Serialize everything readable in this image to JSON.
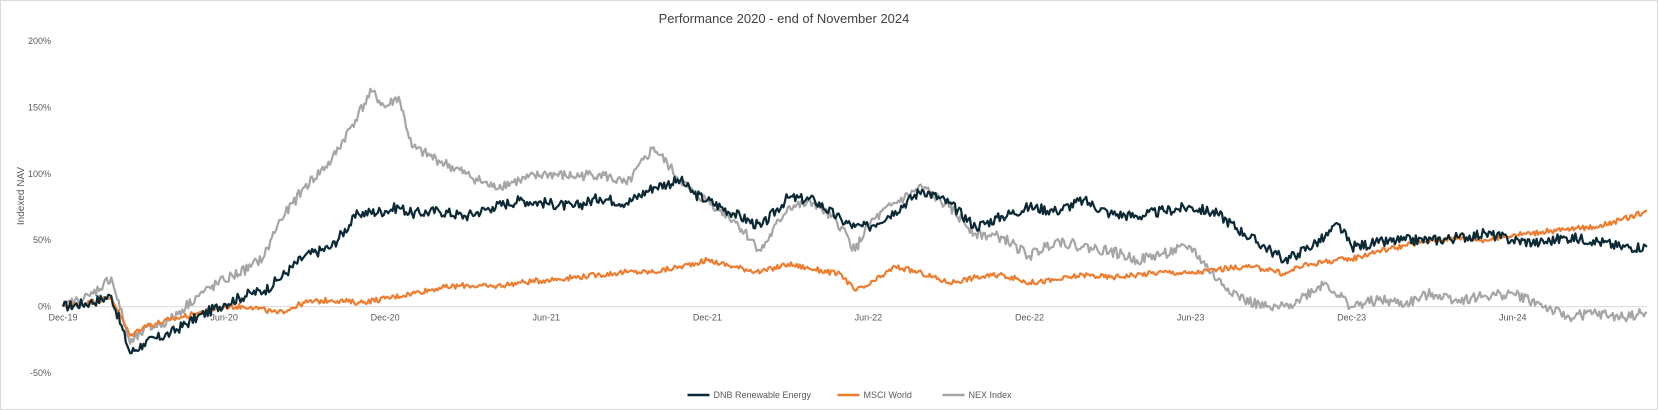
{
  "chart_data": {
    "type": "line",
    "title": "Performance 2020 - end of November 2024",
    "ylabel": "Indexed NAV",
    "xlabel": "",
    "ylim": [
      -50,
      200
    ],
    "yticks": [
      {
        "value": 200,
        "label": "200%"
      },
      {
        "value": 150,
        "label": "150%"
      },
      {
        "value": 100,
        "label": "100%"
      },
      {
        "value": 50,
        "label": "50%"
      },
      {
        "value": 0,
        "label": "0%"
      },
      {
        "value": -50,
        "label": "-50%"
      }
    ],
    "xlim": [
      0,
      59
    ],
    "xticks": [
      {
        "value": 0,
        "label": "Dec-19"
      },
      {
        "value": 6,
        "label": "Jun-20"
      },
      {
        "value": 12,
        "label": "Dec-20"
      },
      {
        "value": 18,
        "label": "Jun-21"
      },
      {
        "value": 24,
        "label": "Dec-21"
      },
      {
        "value": 30,
        "label": "Jun-22"
      },
      {
        "value": 36,
        "label": "Dec-22"
      },
      {
        "value": 42,
        "label": "Jun-23"
      },
      {
        "value": 48,
        "label": "Dec-23"
      },
      {
        "value": 54,
        "label": "Jun-24"
      }
    ],
    "grid": false,
    "legend": "bottom",
    "series": [
      {
        "name": "DNB Renewable Energy",
        "color": "#0b2a35",
        "x": [
          0,
          1,
          1.8,
          2.5,
          3,
          4,
          5,
          6,
          7,
          7.5,
          8,
          9,
          10,
          11,
          12,
          12.5,
          13,
          14,
          15,
          16,
          17,
          18,
          19,
          20,
          21,
          22,
          23,
          23.5,
          24,
          25,
          26,
          27,
          28,
          29,
          29.5,
          30,
          31,
          32,
          33,
          34,
          35,
          36,
          37,
          38,
          39,
          40,
          41,
          42,
          43,
          44,
          45,
          45.5,
          46,
          47,
          47.5,
          48,
          49,
          50,
          51,
          52,
          53,
          54,
          55,
          56,
          57,
          58,
          59
        ],
        "values": [
          0,
          3,
          8,
          -35,
          -28,
          -20,
          -8,
          2,
          10,
          12,
          20,
          38,
          45,
          70,
          72,
          75,
          70,
          72,
          68,
          75,
          80,
          78,
          75,
          82,
          78,
          90,
          95,
          85,
          80,
          70,
          60,
          82,
          80,
          65,
          60,
          60,
          72,
          88,
          78,
          60,
          68,
          75,
          72,
          80,
          70,
          68,
          72,
          75,
          70,
          55,
          42,
          35,
          40,
          52,
          62,
          45,
          48,
          50,
          50,
          52,
          55,
          50,
          48,
          52,
          50,
          45,
          45
        ]
      },
      {
        "name": "MSCI World",
        "color": "#ed7d31",
        "x": [
          0,
          1,
          1.8,
          2.5,
          3,
          4,
          5,
          6,
          7,
          8,
          9,
          10,
          11,
          12,
          13,
          14,
          15,
          16,
          17,
          18,
          19,
          20,
          21,
          22,
          23,
          24,
          25,
          26,
          27,
          28,
          29,
          29.5,
          30,
          31,
          32,
          33,
          34,
          35,
          36,
          37,
          38,
          39,
          40,
          41,
          42,
          43,
          44,
          45,
          45.5,
          46,
          47,
          48,
          49,
          50,
          51,
          52,
          53,
          54,
          55,
          56,
          57,
          58,
          59
        ],
        "values": [
          0,
          3,
          7,
          -22,
          -15,
          -10,
          -5,
          0,
          0,
          -5,
          3,
          5,
          3,
          6,
          10,
          14,
          16,
          15,
          18,
          20,
          22,
          24,
          26,
          26,
          30,
          35,
          30,
          26,
          32,
          28,
          24,
          12,
          16,
          30,
          25,
          18,
          22,
          24,
          18,
          20,
          24,
          22,
          24,
          26,
          25,
          28,
          30,
          28,
          24,
          30,
          34,
          36,
          42,
          46,
          50,
          52,
          50,
          54,
          56,
          58,
          60,
          65,
          72
        ]
      },
      {
        "name": "NEX Index",
        "color": "#a6a6a6",
        "x": [
          0,
          1,
          1.8,
          2.5,
          3,
          4,
          5,
          6,
          7,
          7.5,
          8,
          9,
          10,
          11,
          11.5,
          12,
          12.5,
          13,
          14,
          15,
          16,
          17,
          18,
          19,
          20,
          21,
          22,
          23,
          23.5,
          24,
          25,
          26,
          27,
          28,
          29,
          29.5,
          30,
          31,
          32,
          33,
          34,
          35,
          36,
          37,
          38,
          39,
          40,
          41,
          42,
          43,
          44,
          45,
          45.5,
          46,
          47,
          48,
          49,
          50,
          51,
          52,
          53,
          54,
          55,
          56,
          57,
          58,
          59
        ],
        "values": [
          0,
          8,
          22,
          -28,
          -18,
          -10,
          8,
          20,
          30,
          38,
          62,
          90,
          110,
          145,
          162,
          150,
          158,
          120,
          110,
          100,
          90,
          95,
          100,
          98,
          100,
          92,
          120,
          95,
          85,
          80,
          65,
          42,
          75,
          78,
          60,
          42,
          62,
          78,
          90,
          75,
          55,
          52,
          38,
          50,
          45,
          42,
          35,
          40,
          45,
          20,
          5,
          -2,
          0,
          5,
          18,
          0,
          5,
          2,
          10,
          5,
          8,
          10,
          2,
          -8,
          -5,
          -8,
          -5
        ]
      }
    ]
  }
}
